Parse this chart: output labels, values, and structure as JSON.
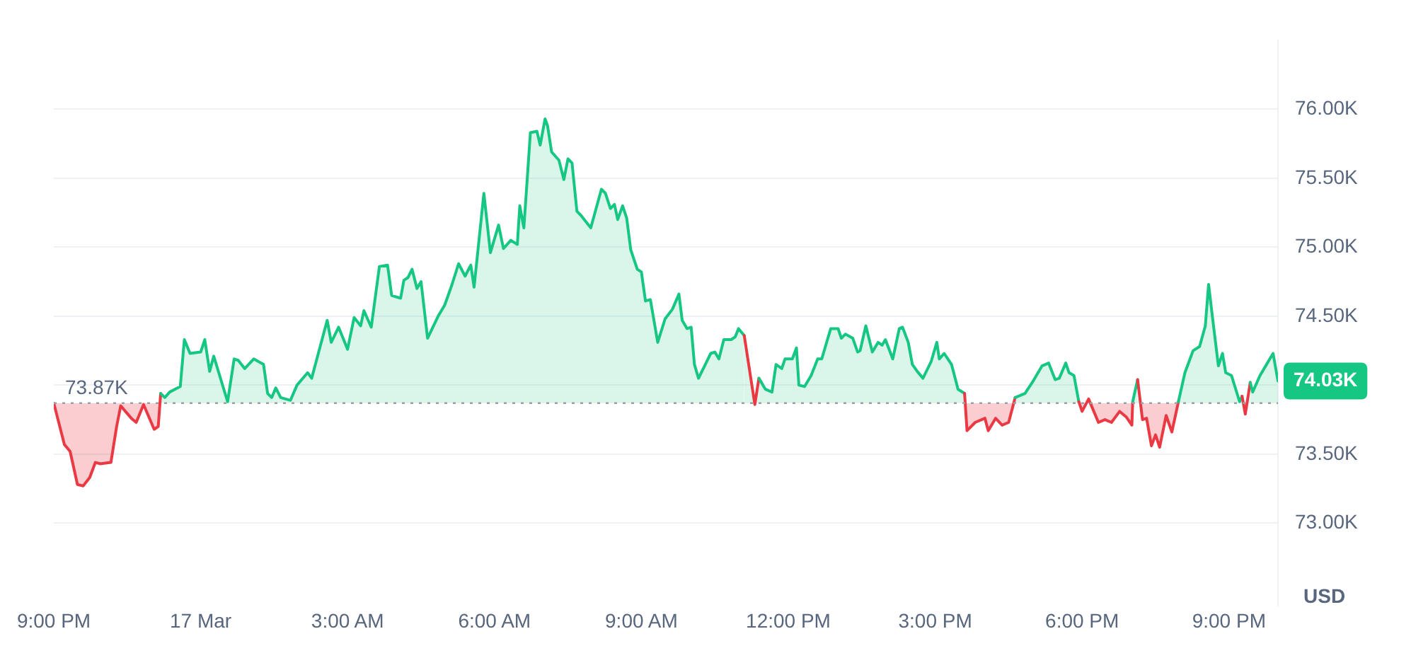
{
  "chart_data": {
    "type": "area",
    "ylabel": "USD",
    "x": [
      "--03-16T21:00",
      "--03-16T21:13",
      "--03-16T21:20",
      "--03-16T21:29",
      "--03-16T21:36",
      "--03-16T21:44",
      "--03-16T21:51",
      "--03-16T21:57",
      "--03-16T22:10",
      "--03-16T22:17",
      "--03-16T22:22",
      "--03-16T22:35",
      "--03-16T22:41",
      "--03-16T22:50",
      "--03-16T23:03",
      "--03-16T23:08",
      "--03-16T23:11",
      "--03-16T23:16",
      "--03-16T23:22",
      "--03-16T23:35",
      "--03-16T23:40",
      "--03-16T23:47",
      "--03-17T00:00",
      "--03-17T00:05",
      "--03-17T00:11",
      "--03-17T00:16",
      "--03-17T00:33",
      "--03-17T00:41",
      "--03-17T00:46",
      "--03-17T00:54",
      "--03-17T01:05",
      "--03-17T01:17",
      "--03-17T01:22",
      "--03-17T01:27",
      "--03-17T01:32",
      "--03-17T01:38",
      "--03-17T01:50",
      "--03-17T01:58",
      "--03-17T02:11",
      "--03-17T02:16",
      "--03-17T02:35",
      "--03-17T02:40",
      "--03-17T02:49",
      "--03-17T03:00",
      "--03-17T03:08",
      "--03-17T03:16",
      "--03-17T03:20",
      "--03-17T03:29",
      "--03-17T03:39",
      "--03-17T03:49",
      "--03-17T03:54",
      "--03-17T04:05",
      "--03-17T04:09",
      "--03-17T04:14",
      "--03-17T04:19",
      "--03-17T04:25",
      "--03-17T04:30",
      "--03-17T04:38",
      "--03-17T04:51",
      "--03-17T04:59",
      "--03-17T05:08",
      "--03-17T05:16",
      "--03-17T05:24",
      "--03-17T05:31",
      "--03-17T05:35",
      "--03-17T05:47",
      "--03-17T05:55",
      "--03-17T06:05",
      "--03-17T06:11",
      "--03-17T06:20",
      "--03-17T06:28",
      "--03-17T06:31",
      "--03-17T06:36",
      "--03-17T06:44",
      "--03-17T06:52",
      "--03-17T06:56",
      "--03-17T07:02",
      "--03-17T07:05",
      "--03-17T07:10",
      "--03-17T07:19",
      "--03-17T07:25",
      "--03-17T07:30",
      "--03-17T07:35",
      "--03-17T07:41",
      "--03-17T07:46",
      "--03-17T07:58",
      "--03-17T08:11",
      "--03-17T08:16",
      "--03-17T08:22",
      "--03-17T08:27",
      "--03-17T08:31",
      "--03-17T08:37",
      "--03-17T08:42",
      "--03-17T08:47",
      "--03-17T08:55",
      "--03-17T09:00",
      "--03-17T09:05",
      "--03-17T09:11",
      "--03-17T09:20",
      "--03-17T09:29",
      "--03-17T09:38",
      "--03-17T09:46",
      "--03-17T09:50",
      "--03-17T09:56",
      "--03-17T10:01",
      "--03-17T10:05",
      "--03-17T10:10",
      "--03-17T10:25",
      "--03-17T10:30",
      "--03-17T10:35",
      "--03-17T10:41",
      "--03-17T10:50",
      "--03-17T10:55",
      "--03-17T10:59",
      "--03-17T11:06",
      "--03-17T11:19",
      "--03-17T11:24",
      "--03-17T11:32",
      "--03-17T11:40",
      "--03-17T11:45",
      "--03-17T11:52",
      "--03-17T11:56",
      "--03-17T12:05",
      "--03-17T12:10",
      "--03-17T12:13",
      "--03-17T12:20",
      "--03-17T12:28",
      "--03-17T12:36",
      "--03-17T12:41",
      "--03-17T12:52",
      "--03-17T13:01",
      "--03-17T13:05",
      "--03-17T13:10",
      "--03-17T13:19",
      "--03-17T13:25",
      "--03-17T13:28",
      "--03-17T13:35",
      "--03-17T13:43",
      "--03-17T13:50",
      "--03-17T13:55",
      "--03-17T13:59",
      "--03-17T14:08",
      "--03-17T14:16",
      "--03-17T14:20",
      "--03-17T14:27",
      "--03-17T14:32",
      "--03-17T14:38",
      "--03-17T14:45",
      "--03-17T14:55",
      "--03-17T15:02",
      "--03-17T15:05",
      "--03-17T15:11",
      "--03-17T15:20",
      "--03-17T15:28",
      "--03-17T15:36",
      "--03-17T15:39",
      "--03-17T15:49",
      "--03-17T16:01",
      "--03-17T16:05",
      "--03-17T16:14",
      "--03-17T16:22",
      "--03-17T16:30",
      "--03-17T16:38",
      "--03-17T16:50",
      "--03-17T16:59",
      "--03-17T17:11",
      "--03-17T17:19",
      "--03-17T17:27",
      "--03-17T17:32",
      "--03-17T17:40",
      "--03-17T17:44",
      "--03-17T17:50",
      "--03-17T17:56",
      "--03-17T18:00",
      "--03-17T18:08",
      "--03-17T18:20",
      "--03-17T18:28",
      "--03-17T18:36",
      "--03-17T18:46",
      "--03-17T18:54",
      "--03-17T19:01",
      "--03-17T19:02",
      "--03-17T19:08",
      "--03-17T19:14",
      "--03-17T19:19",
      "--03-17T19:25",
      "--03-17T19:30",
      "--03-17T19:35",
      "--03-17T19:43",
      "--03-17T19:50",
      "--03-17T19:58",
      "--03-17T20:06",
      "--03-17T20:16",
      "--03-17T20:24",
      "--03-17T20:31",
      "--03-17T20:35",
      "--03-17T20:40",
      "--03-17T20:47",
      "--03-17T20:52",
      "--03-17T20:56",
      "--03-17T21:03",
      "--03-17T21:13",
      "--03-17T21:16",
      "--03-17T21:20",
      "--03-17T21:26",
      "--03-17T21:29",
      "--03-17T21:38",
      "--03-17T21:46",
      "--03-17T21:54",
      "--03-17T22:00"
    ],
    "series": [
      {
        "color": "#16c784",
        "values": [
          73870,
          73570,
          73520,
          73280,
          73270,
          73330,
          73440,
          73430,
          73440,
          73700,
          73850,
          73760,
          73730,
          73860,
          73680,
          73700,
          73940,
          73910,
          73950,
          73990,
          74330,
          74230,
          74240,
          74330,
          74100,
          74210,
          73880,
          74190,
          74180,
          74120,
          74190,
          74150,
          73940,
          73910,
          73980,
          73910,
          73890,
          74000,
          74090,
          74050,
          74470,
          74310,
          74420,
          74260,
          74490,
          74430,
          74540,
          74420,
          74860,
          74870,
          74650,
          74630,
          74760,
          74780,
          74840,
          74700,
          74750,
          74340,
          74500,
          74580,
          74730,
          74880,
          74790,
          74870,
          74710,
          75390,
          74960,
          75160,
          74990,
          75050,
          75020,
          75300,
          75140,
          75830,
          75840,
          75740,
          75930,
          75880,
          75690,
          75630,
          75490,
          75640,
          75610,
          75260,
          75230,
          75140,
          75420,
          75390,
          75280,
          75310,
          75200,
          75300,
          75210,
          74980,
          74840,
          74820,
          74610,
          74620,
          74310,
          74480,
          74550,
          74660,
          74470,
          74410,
          74420,
          74150,
          74050,
          74230,
          74240,
          74190,
          74330,
          74330,
          74350,
          74410,
          74360,
          73860,
          74050,
          73970,
          73950,
          74150,
          74120,
          74190,
          74190,
          74270,
          74000,
          73990,
          74070,
          74190,
          74190,
          74410,
          74410,
          74340,
          74370,
          74340,
          74240,
          74250,
          74430,
          74240,
          74310,
          74290,
          74330,
          74190,
          74410,
          74420,
          74310,
          74150,
          74100,
          74050,
          74170,
          74310,
          74190,
          74230,
          74150,
          73970,
          73940,
          73670,
          73730,
          73760,
          73670,
          73760,
          73710,
          73730,
          73910,
          73940,
          74020,
          74140,
          74160,
          74040,
          74050,
          74160,
          74090,
          74070,
          73880,
          73810,
          73900,
          73730,
          73750,
          73730,
          73810,
          73770,
          73710,
          73880,
          74040,
          73750,
          73760,
          73560,
          73640,
          73550,
          73780,
          73660,
          73880,
          74090,
          74250,
          74280,
          74430,
          74730,
          74480,
          74140,
          74230,
          74090,
          74070,
          73880,
          73920,
          73790,
          74020,
          73950,
          74070,
          74150,
          74230,
          74030
        ],
        "colors": [
          "#ea3943",
          "#ea3943",
          "#ea3943",
          "#ea3943",
          "#ea3943",
          "#ea3943",
          "#ea3943",
          "#ea3943",
          "#ea3943",
          "#ea3943",
          "#ea3943",
          "#ea3943",
          "#ea3943",
          "#ea3943",
          "#ea3943",
          "#ea3943",
          "#16c784",
          "#16c784",
          "#16c784",
          "#16c784",
          "#16c784",
          "#16c784",
          "#16c784",
          "#16c784",
          "#16c784",
          "#16c784",
          "#16c784",
          "#16c784",
          "#16c784",
          "#16c784",
          "#16c784",
          "#16c784",
          "#16c784",
          "#16c784",
          "#16c784",
          "#16c784",
          "#16c784",
          "#16c784",
          "#16c784",
          "#16c784",
          "#16c784",
          "#16c784",
          "#16c784",
          "#16c784",
          "#16c784",
          "#16c784",
          "#16c784",
          "#16c784",
          "#16c784",
          "#16c784",
          "#16c784",
          "#16c784",
          "#16c784",
          "#16c784",
          "#16c784",
          "#16c784",
          "#16c784",
          "#16c784",
          "#16c784",
          "#16c784",
          "#16c784",
          "#16c784",
          "#16c784",
          "#16c784",
          "#16c784",
          "#16c784",
          "#16c784",
          "#16c784",
          "#16c784",
          "#16c784",
          "#16c784",
          "#16c784",
          "#16c784",
          "#16c784",
          "#16c784",
          "#16c784",
          "#16c784",
          "#16c784",
          "#16c784",
          "#16c784",
          "#16c784",
          "#16c784",
          "#16c784",
          "#16c784",
          "#16c784",
          "#16c784",
          "#16c784",
          "#16c784",
          "#16c784",
          "#16c784",
          "#16c784",
          "#16c784",
          "#16c784",
          "#16c784",
          "#16c784",
          "#16c784",
          "#16c784",
          "#16c784",
          "#16c784",
          "#16c784",
          "#16c784",
          "#16c784",
          "#16c784",
          "#16c784",
          "#16c784",
          "#16c784",
          "#16c784",
          "#16c784",
          "#16c784",
          "#16c784",
          "#16c784",
          "#16c784",
          "#16c784",
          "#16c784",
          "#16c784",
          "#ea3943",
          "#16c784",
          "#16c784",
          "#16c784",
          "#16c784",
          "#16c784",
          "#16c784",
          "#16c784",
          "#16c784",
          "#16c784",
          "#16c784",
          "#16c784",
          "#16c784",
          "#16c784",
          "#16c784",
          "#16c784",
          "#16c784",
          "#16c784",
          "#16c784",
          "#16c784",
          "#16c784",
          "#16c784",
          "#16c784",
          "#16c784",
          "#16c784",
          "#16c784",
          "#16c784",
          "#16c784",
          "#16c784",
          "#16c784",
          "#16c784",
          "#16c784",
          "#16c784",
          "#16c784",
          "#16c784",
          "#16c784",
          "#16c784",
          "#16c784",
          "#16c784",
          "#16c784",
          "#ea3943",
          "#ea3943",
          "#ea3943",
          "#ea3943",
          "#ea3943",
          "#ea3943",
          "#ea3943",
          "#16c784",
          "#16c784",
          "#16c784",
          "#16c784",
          "#16c784",
          "#16c784",
          "#16c784",
          "#16c784",
          "#16c784",
          "#16c784",
          "#16c784",
          "#ea3943",
          "#16c784",
          "#ea3943",
          "#ea3943",
          "#ea3943",
          "#ea3943",
          "#ea3943",
          "#ea3943",
          "#16c784",
          "#16c784",
          "#ea3943",
          "#ea3943",
          "#ea3943",
          "#ea3943",
          "#ea3943",
          "#ea3943",
          "#ea3943",
          "#16c784",
          "#16c784",
          "#16c784",
          "#16c784",
          "#16c784",
          "#16c784",
          "#16c784",
          "#16c784",
          "#16c784",
          "#16c784",
          "#16c784",
          "#16c784",
          "#16c784",
          "#ea3943",
          "#16c784",
          "#16c784",
          "#16c784",
          "#16c784",
          "#16c784",
          "#16c784"
        ]
      }
    ],
    "xlim": [
      "--03-16T21:00",
      "--03-17T22:00"
    ],
    "xticks": [
      {
        "value": "--03-16T21:00",
        "label": "9:00 PM"
      },
      {
        "value": "--03-17T00:00",
        "label": "17 Mar"
      },
      {
        "value": "--03-17T03:00",
        "label": "3:00 AM"
      },
      {
        "value": "--03-17T06:00",
        "label": "6:00 AM"
      },
      {
        "value": "--03-17T09:00",
        "label": "9:00 AM"
      },
      {
        "value": "--03-17T12:00",
        "label": "12:00 PM"
      },
      {
        "value": "--03-17T15:00",
        "label": "3:00 PM"
      },
      {
        "value": "--03-17T18:00",
        "label": "6:00 PM"
      },
      {
        "value": "--03-17T21:00",
        "label": "9:00 PM"
      }
    ],
    "ylim": [
      72400,
      76500
    ],
    "yticks": [
      {
        "value": 73000,
        "label": "73.00K"
      },
      {
        "value": 73500,
        "label": "73.50K"
      },
      {
        "value": 74000,
        "label": null
      },
      {
        "value": 74500,
        "label": "74.50K"
      },
      {
        "value": 75000,
        "label": "75.00K"
      },
      {
        "value": 75500,
        "label": "75.50K"
      },
      {
        "value": 76000,
        "label": "76.00K"
      }
    ],
    "ref_lines": [
      {
        "axis": "y",
        "value": 73870,
        "label": "73.87K",
        "color": "#9aa0a6",
        "line_style": "dotted"
      }
    ],
    "annotations": [
      {
        "text": "74.03K",
        "x": "--03-17T22:00",
        "y": 74030
      }
    ],
    "grid": "y",
    "legend": false,
    "marker": "none",
    "line_style": "solid"
  }
}
